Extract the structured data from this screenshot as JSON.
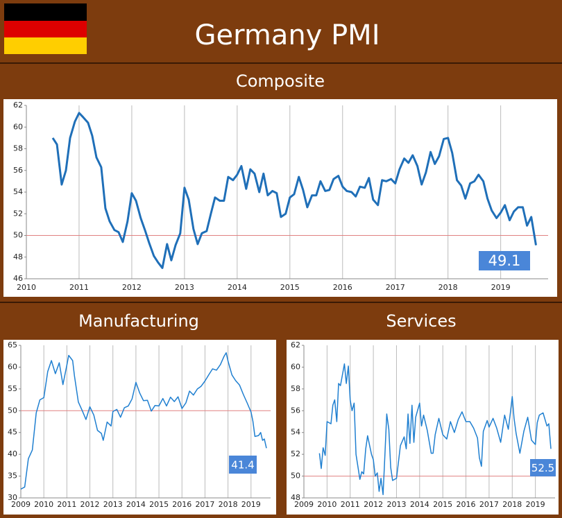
{
  "title": "Germany PMI",
  "chart_data": [
    {
      "type": "line",
      "title": "Composite",
      "color": "#1f6fb8",
      "annotation": "49.1",
      "annotation_color": "#4a86d8",
      "grid": "x",
      "reference_line": 50,
      "reference_color": "#e08080",
      "xlim": [
        2010,
        2019.9
      ],
      "xticks": [
        2010,
        2011,
        2012,
        2013,
        2014,
        2015,
        2016,
        2017,
        2018,
        2019
      ],
      "ylim": [
        46,
        62
      ],
      "yticks": [
        46,
        48,
        50,
        52,
        54,
        56,
        58,
        60,
        62
      ],
      "x": [
        2010.5,
        2010.58,
        2010.67,
        2010.75,
        2010.83,
        2010.92,
        2011.0,
        2011.08,
        2011.17,
        2011.25,
        2011.33,
        2011.42,
        2011.5,
        2011.58,
        2011.67,
        2011.75,
        2011.83,
        2011.92,
        2012.0,
        2012.08,
        2012.17,
        2012.25,
        2012.33,
        2012.42,
        2012.5,
        2012.58,
        2012.67,
        2012.75,
        2012.83,
        2012.92,
        2013.0,
        2013.08,
        2013.17,
        2013.25,
        2013.33,
        2013.42,
        2013.5,
        2013.58,
        2013.67,
        2013.75,
        2013.83,
        2013.92,
        2014.0,
        2014.08,
        2014.17,
        2014.25,
        2014.33,
        2014.42,
        2014.5,
        2014.58,
        2014.67,
        2014.75,
        2014.83,
        2014.92,
        2015.0,
        2015.08,
        2015.17,
        2015.25,
        2015.33,
        2015.42,
        2015.5,
        2015.58,
        2015.67,
        2015.75,
        2015.83,
        2015.92,
        2016.0,
        2016.08,
        2016.17,
        2016.25,
        2016.33,
        2016.42,
        2016.5,
        2016.58,
        2016.67,
        2016.75,
        2016.83,
        2016.92,
        2017.0,
        2017.08,
        2017.17,
        2017.25,
        2017.33,
        2017.42,
        2017.5,
        2017.58,
        2017.67,
        2017.75,
        2017.83,
        2017.92,
        2018.0,
        2018.08,
        2018.17,
        2018.25,
        2018.33,
        2018.42,
        2018.5,
        2018.58,
        2018.67,
        2018.75,
        2018.83,
        2018.92,
        2019.0,
        2019.08,
        2019.17,
        2019.25,
        2019.33,
        2019.42,
        2019.5,
        2019.58,
        2019.67
      ],
      "values": [
        59,
        58.4,
        54.7,
        56,
        59,
        60.5,
        61.3,
        60.9,
        60.4,
        59.2,
        57.2,
        56.3,
        52.5,
        51.3,
        50.5,
        50.3,
        49.4,
        51.3,
        53.9,
        53.2,
        51.6,
        50.5,
        49.3,
        48.1,
        47.5,
        47.0,
        49.2,
        47.7,
        49.1,
        50.2,
        54.4,
        53.3,
        50.6,
        49.2,
        50.2,
        50.4,
        52.0,
        53.5,
        53.2,
        53.2,
        55.4,
        55.1,
        55.6,
        56.4,
        54.3,
        56.1,
        55.7,
        54.0,
        55.7,
        53.7,
        54.1,
        53.9,
        51.7,
        52.0,
        53.5,
        53.8,
        55.4,
        54.2,
        52.6,
        53.7,
        53.7,
        55.0,
        54.1,
        54.2,
        55.2,
        55.5,
        54.5,
        54.1,
        54.0,
        53.6,
        54.5,
        54.4,
        55.3,
        53.3,
        52.8,
        55.1,
        55.0,
        55.2,
        54.8,
        56.1,
        57.1,
        56.7,
        57.4,
        56.4,
        54.7,
        55.8,
        57.7,
        56.6,
        57.3,
        58.9,
        59.0,
        57.6,
        55.1,
        54.6,
        53.4,
        54.8,
        55.0,
        55.6,
        55.0,
        53.4,
        52.3,
        51.6,
        52.1,
        52.8,
        51.4,
        52.2,
        52.6,
        52.6,
        50.9,
        51.7,
        49.1
      ]
    },
    {
      "type": "line",
      "title": "Manufacturing",
      "color": "#1f7fd0",
      "annotation": "41.4",
      "annotation_color": "#4a86d8",
      "grid": "x",
      "reference_line": 50,
      "reference_color": "#e08080",
      "xlim": [
        2009,
        2019.85
      ],
      "xticks": [
        2009,
        2010,
        2011,
        2012,
        2013,
        2014,
        2015,
        2016,
        2017,
        2018,
        2019
      ],
      "ylim": [
        30,
        65
      ],
      "yticks": [
        30,
        35,
        40,
        45,
        50,
        55,
        60,
        65
      ],
      "x": [
        2009.0,
        2009.17,
        2009.33,
        2009.5,
        2009.67,
        2009.83,
        2010.0,
        2010.17,
        2010.33,
        2010.5,
        2010.67,
        2010.83,
        2011.0,
        2011.08,
        2011.25,
        2011.33,
        2011.5,
        2011.67,
        2011.83,
        2012.0,
        2012.17,
        2012.33,
        2012.5,
        2012.58,
        2012.75,
        2012.92,
        2013.0,
        2013.17,
        2013.33,
        2013.5,
        2013.67,
        2013.83,
        2014.0,
        2014.17,
        2014.33,
        2014.5,
        2014.67,
        2014.83,
        2015.0,
        2015.17,
        2015.33,
        2015.5,
        2015.67,
        2015.83,
        2016.0,
        2016.17,
        2016.33,
        2016.5,
        2016.67,
        2016.83,
        2017.0,
        2017.17,
        2017.33,
        2017.5,
        2017.67,
        2017.83,
        2017.92,
        2018.0,
        2018.17,
        2018.33,
        2018.5,
        2018.67,
        2018.83,
        2019.0,
        2019.08,
        2019.17,
        2019.33,
        2019.42,
        2019.5,
        2019.58,
        2019.67
      ],
      "values": [
        32,
        32.5,
        39,
        41,
        49.5,
        52.5,
        53,
        59,
        61.5,
        58.5,
        61,
        56,
        60.5,
        62.7,
        61.5,
        58,
        52,
        50,
        48,
        50.9,
        49,
        45.5,
        44.8,
        43.2,
        47.4,
        46.5,
        49.8,
        50.3,
        48.5,
        50.7,
        51.1,
        52.7,
        56.5,
        54,
        52.3,
        52.4,
        49.9,
        51.2,
        51.1,
        52.8,
        51.1,
        53.1,
        52.1,
        53.2,
        50.5,
        51.8,
        54.5,
        53.6,
        55,
        55.6,
        56.8,
        58.3,
        59.6,
        59.3,
        60.6,
        62.5,
        63.3,
        61.4,
        58.2,
        56.9,
        55.9,
        53.7,
        51.8,
        49.7,
        47.6,
        44.1,
        44.3,
        45.0,
        43.2,
        43.5,
        41.4
      ]
    },
    {
      "type": "line",
      "title": "Services",
      "color": "#1f7fd0",
      "annotation": "52.5",
      "annotation_color": "#4a86d8",
      "grid": "x",
      "reference_line": 50,
      "reference_color": "#e08080",
      "xlim": [
        2009,
        2019.85
      ],
      "xticks": [
        2009,
        2010,
        2011,
        2012,
        2013,
        2014,
        2015,
        2016,
        2017,
        2018,
        2019
      ],
      "ylim": [
        48,
        62
      ],
      "yticks": [
        48,
        50,
        52,
        54,
        56,
        58,
        60,
        62
      ],
      "x": [
        2009.67,
        2009.75,
        2009.83,
        2009.92,
        2010.0,
        2010.17,
        2010.25,
        2010.33,
        2010.42,
        2010.5,
        2010.58,
        2010.75,
        2010.83,
        2010.92,
        2011.0,
        2011.08,
        2011.17,
        2011.25,
        2011.42,
        2011.5,
        2011.58,
        2011.67,
        2011.75,
        2011.92,
        2012.0,
        2012.08,
        2012.17,
        2012.25,
        2012.33,
        2012.42,
        2012.5,
        2012.58,
        2012.67,
        2012.75,
        2012.83,
        2013.0,
        2013.17,
        2013.33,
        2013.42,
        2013.5,
        2013.58,
        2013.67,
        2013.75,
        2013.83,
        2014.0,
        2014.08,
        2014.17,
        2014.33,
        2014.5,
        2014.58,
        2014.67,
        2014.83,
        2015.0,
        2015.17,
        2015.33,
        2015.5,
        2015.67,
        2015.83,
        2016.0,
        2016.17,
        2016.33,
        2016.5,
        2016.58,
        2016.67,
        2016.75,
        2016.92,
        2017.0,
        2017.17,
        2017.33,
        2017.5,
        2017.67,
        2017.83,
        2017.92,
        2018.0,
        2018.08,
        2018.17,
        2018.33,
        2018.5,
        2018.67,
        2018.83,
        2019.0,
        2019.08,
        2019.17,
        2019.33,
        2019.5,
        2019.58,
        2019.67
      ],
      "values": [
        52.1,
        50.7,
        52.6,
        51.9,
        55,
        54.8,
        56.5,
        57,
        55,
        58.5,
        58.3,
        60.3,
        58.5,
        60.1,
        57,
        56,
        56.7,
        52,
        49.7,
        50.4,
        50.2,
        52.5,
        53.7,
        52,
        51.5,
        50.0,
        50.3,
        48.6,
        49.8,
        48.3,
        52,
        55.7,
        54.3,
        50.8,
        49.6,
        49.8,
        52.8,
        53.6,
        52.5,
        55.7,
        53.0,
        56.5,
        53.1,
        55.4,
        56.7,
        54.6,
        55.6,
        54.2,
        52.1,
        52.1,
        53.8,
        55.3,
        53.8,
        53.4,
        55,
        54.0,
        55.2,
        55.9,
        55,
        55,
        54.4,
        53.5,
        51.7,
        50.9,
        54.1,
        55.1,
        54.5,
        55.3,
        54.4,
        53.1,
        55.6,
        54.3,
        55.8,
        57.3,
        55.3,
        53.9,
        52.1,
        54.1,
        55.4,
        53.3,
        52.9,
        54.9,
        55.6,
        55.8,
        54.6,
        54.8,
        52.5
      ]
    }
  ]
}
